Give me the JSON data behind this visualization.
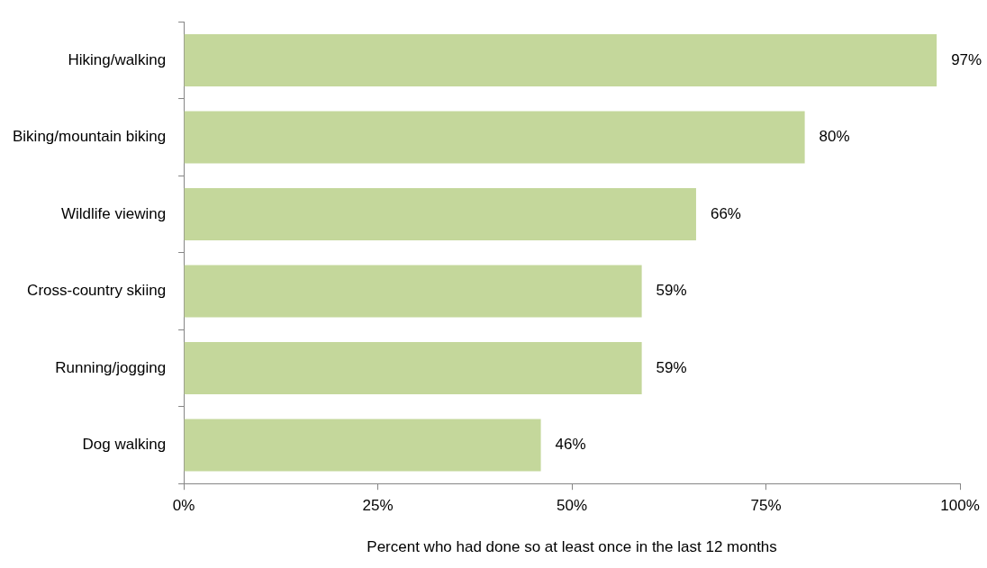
{
  "chart_data": {
    "type": "bar",
    "orientation": "horizontal",
    "xlabel": "Percent who had done so at least once in the last 12 months",
    "categories": [
      "Hiking/walking",
      "Biking/mountain biking",
      "Wildlife viewing",
      "Cross-country skiing",
      "Running/jogging",
      "Dog walking"
    ],
    "values": [
      97,
      80,
      66,
      59,
      59,
      46
    ],
    "value_labels": [
      "97%",
      "80%",
      "66%",
      "59%",
      "59%",
      "46%"
    ],
    "color": "#c4d79b",
    "xlim": [
      0,
      100
    ],
    "xticks": [
      {
        "value": 0,
        "label": "0%"
      },
      {
        "value": 25,
        "label": "25%"
      },
      {
        "value": 50,
        "label": "50%"
      },
      {
        "value": 75,
        "label": "75%"
      },
      {
        "value": 100,
        "label": "100%"
      }
    ],
    "grid": false,
    "legend": false
  }
}
